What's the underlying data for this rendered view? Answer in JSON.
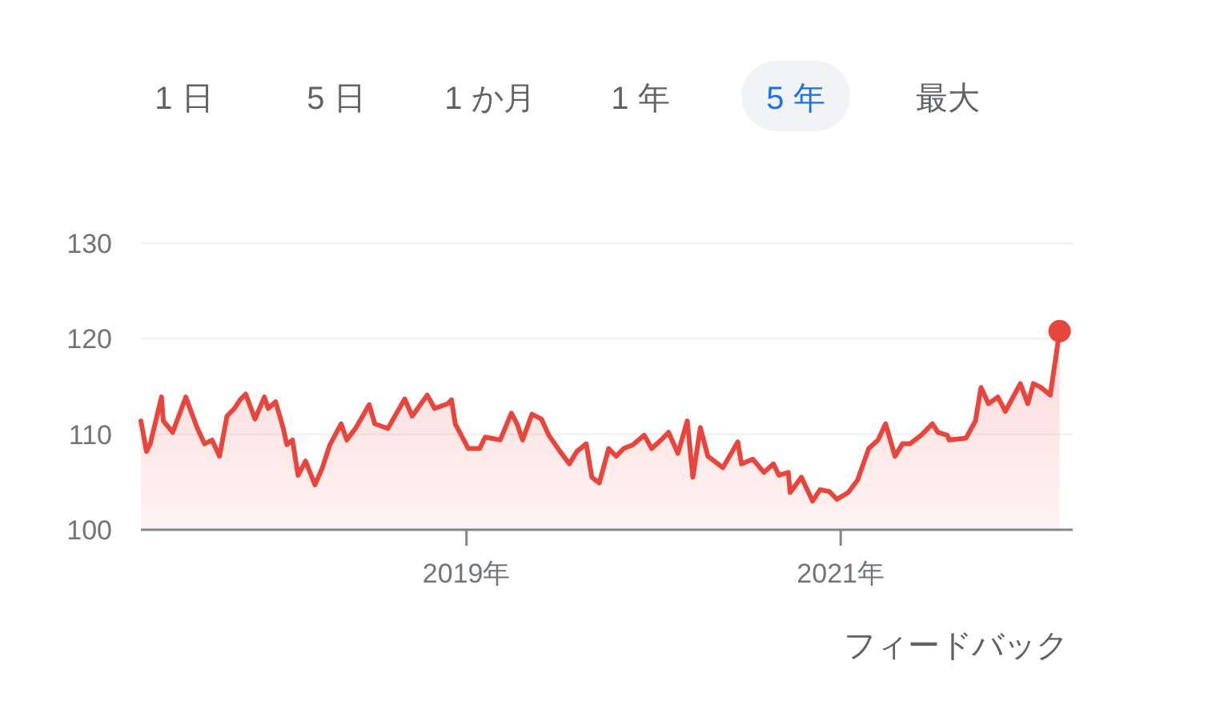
{
  "chart_data": {
    "type": "area",
    "annotations": [
      "1 日",
      "5 日",
      "1 か月",
      "1 年",
      "5 年",
      "最大",
      "フィードバック"
    ],
    "x": [
      2017.26,
      2017.29,
      2017.31,
      2017.37,
      2017.38,
      2017.43,
      2017.5,
      2017.56,
      2017.6,
      2017.64,
      2017.68,
      2017.72,
      2017.76,
      2017.79,
      2017.82,
      2017.87,
      2017.92,
      2017.94,
      2017.98,
      2018.02,
      2018.04,
      2018.07,
      2018.1,
      2018.14,
      2018.19,
      2018.23,
      2018.27,
      2018.33,
      2018.36,
      2018.41,
      2018.48,
      2018.51,
      2018.58,
      2018.67,
      2018.71,
      2018.79,
      2018.83,
      2018.9,
      2018.92,
      2018.94,
      2019.01,
      2019.07,
      2019.1,
      2019.18,
      2019.24,
      2019.27,
      2019.3,
      2019.35,
      2019.4,
      2019.44,
      2019.5,
      2019.55,
      2019.59,
      2019.64,
      2019.67,
      2019.71,
      2019.76,
      2019.8,
      2019.84,
      2019.89,
      2019.95,
      2019.99,
      2020.04,
      2020.08,
      2020.13,
      2020.18,
      2020.21,
      2020.25,
      2020.29,
      2020.37,
      2020.45,
      2020.47,
      2020.53,
      2020.59,
      2020.64,
      2020.67,
      2020.72,
      2020.73,
      2020.79,
      2020.85,
      2020.89,
      2020.94,
      2020.98,
      2021.04,
      2021.09,
      2021.15,
      2021.2,
      2021.24,
      2021.29,
      2021.33,
      2021.37,
      2021.43,
      2021.49,
      2021.52,
      2021.57,
      2021.58,
      2021.67,
      2021.72,
      2021.75,
      2021.79,
      2021.84,
      2021.88,
      2021.96,
      2022.0,
      2022.03,
      2022.07,
      2022.12,
      2022.17
    ],
    "series": [
      {
        "color": "#e8453c",
        "values": [
          111.4,
          108.2,
          109.0,
          113.9,
          111.4,
          110.2,
          113.9,
          110.7,
          109.0,
          109.4,
          107.7,
          111.9,
          112.7,
          113.6,
          114.2,
          111.6,
          113.9,
          112.7,
          113.4,
          110.7,
          108.9,
          109.4,
          105.7,
          107.2,
          104.7,
          106.5,
          108.9,
          111.1,
          109.4,
          110.7,
          113.1,
          111.1,
          110.6,
          113.7,
          111.9,
          114.1,
          112.7,
          113.2,
          113.6,
          111.1,
          108.5,
          108.5,
          109.7,
          109.4,
          112.2,
          111.1,
          109.4,
          112.1,
          111.6,
          109.9,
          108.2,
          106.9,
          108.2,
          109.0,
          105.5,
          104.9,
          108.5,
          107.7,
          108.5,
          108.9,
          109.9,
          108.5,
          109.4,
          110.2,
          108.0,
          111.4,
          105.5,
          110.7,
          107.7,
          106.5,
          109.2,
          106.9,
          107.4,
          106.0,
          106.9,
          105.7,
          106.0,
          103.9,
          105.5,
          103.0,
          104.2,
          104.0,
          103.2,
          103.9,
          105.2,
          108.5,
          109.4,
          111.1,
          107.7,
          109.0,
          109.0,
          109.9,
          111.1,
          110.2,
          109.9,
          109.4,
          109.6,
          111.4,
          114.9,
          113.2,
          113.9,
          112.4,
          115.3,
          113.2,
          115.3,
          114.9,
          114.1,
          120.8
        ]
      }
    ],
    "xlim": [
      2017.26,
      2022.24
    ],
    "xticks": [
      {
        "value": 2019,
        "label": "2019年"
      },
      {
        "value": 2021,
        "label": "2021年"
      }
    ],
    "ylim": [
      100,
      130
    ],
    "yticks": [
      100,
      110,
      120,
      130
    ],
    "grid": "y"
  }
}
